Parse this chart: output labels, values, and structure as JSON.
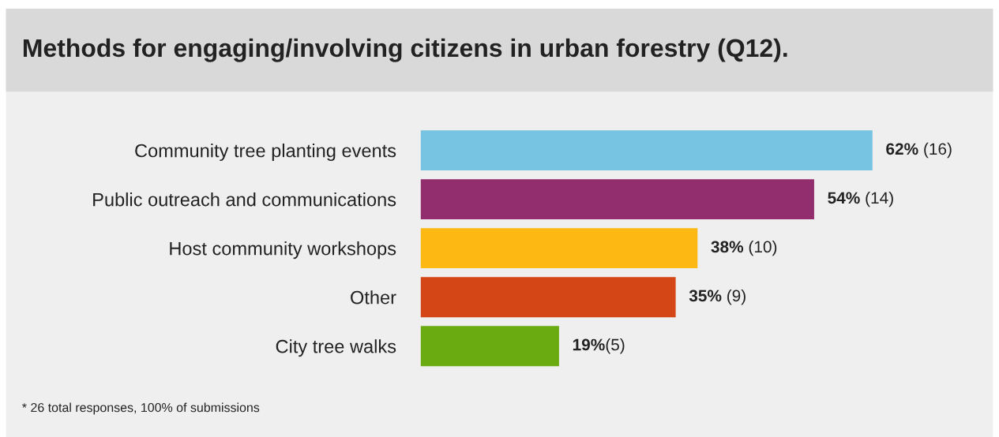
{
  "chart_data": {
    "type": "bar",
    "orientation": "horizontal",
    "title": "Methods for engaging/involving citizens in urban forestry (Q12).",
    "categories": [
      "Community tree planting events",
      "Public outreach and communications",
      "Host community workshops",
      "Other",
      "City tree walks"
    ],
    "values": [
      62,
      54,
      38,
      35,
      19
    ],
    "colors": [
      "#77c3e2",
      "#922d6e",
      "#fdb813",
      "#d44616",
      "#6aab12"
    ],
    "value_labels": [
      "62% (16)",
      "54% (14)",
      "38% (10)",
      "35% (9)",
      "19%(5)"
    ],
    "annotations": [
      "* 26 total responses, 100% of submissions"
    ],
    "grid": false,
    "legend": false
  }
}
